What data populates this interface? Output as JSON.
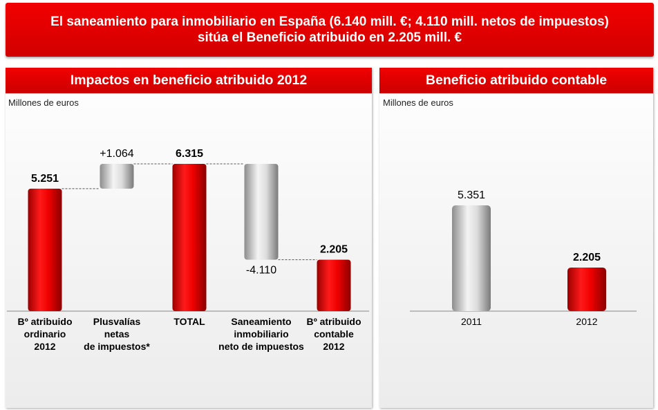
{
  "banner": {
    "line1": "El saneamiento para inmobiliario en España (6.140 mill. €; 4.110 mill. netos de impuestos)",
    "line2": "sitúa el Beneficio atribuido en 2.205 mill. €"
  },
  "colors": {
    "red": "#e00000",
    "grey": "#c8c8c8",
    "header_red": "#e00000"
  },
  "chart_data": [
    {
      "type": "bar",
      "subtype": "waterfall",
      "title": "Impactos en beneficio atribuido 2012",
      "units": "Millones de euros",
      "categories": [
        [
          "Bº atribuido",
          "ordinario",
          "2012"
        ],
        [
          "Plusvalías",
          "netas",
          "de impuestos*"
        ],
        [
          "TOTAL"
        ],
        [
          "Saneamiento",
          "inmobiliario",
          "neto de impuestos"
        ],
        [
          "Bº atribuido",
          "contable",
          "2012"
        ]
      ],
      "values": [
        5251,
        1064,
        6315,
        -4110,
        2205
      ],
      "kinds": [
        "total",
        "delta",
        "total",
        "delta",
        "total"
      ],
      "value_labels": [
        "5.251",
        "+1.064",
        "6.315",
        "-4.110",
        "2.205"
      ],
      "ylim": [
        0,
        6315
      ]
    },
    {
      "type": "bar",
      "title": "Beneficio atribuido contable",
      "units": "Millones de euros",
      "categories": [
        "2011",
        "2012"
      ],
      "values": [
        5351,
        2205
      ],
      "value_labels": [
        "5.351",
        "2.205"
      ],
      "ylim": [
        0,
        5351
      ]
    }
  ]
}
